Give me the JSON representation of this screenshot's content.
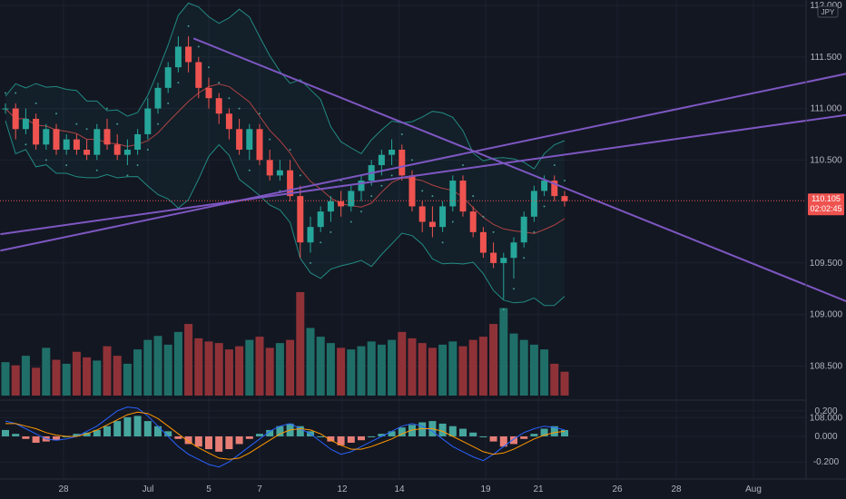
{
  "chart_data": {
    "type": "candlestick",
    "instrument_currency": "JPY",
    "last_price": "110.105",
    "countdown": "02:02:45",
    "price_axis": {
      "range": [
        107.65,
        112.0
      ],
      "ticks": [
        "112.000",
        "111.500",
        "111.000",
        "110.500",
        "109.500",
        "109.000",
        "108.500",
        "108.000"
      ]
    },
    "x_axis": {
      "date_labels": [
        "28",
        "Jul",
        "5",
        "7",
        "12",
        "14",
        "19",
        "21",
        "26",
        "28",
        "Aug"
      ]
    },
    "oscillator_axis": {
      "range": [
        -0.32,
        0.27
      ],
      "ticks": [
        "0.200",
        "0.000",
        "-0.200"
      ]
    },
    "candles": [
      [
        111.0,
        111.05,
        110.95,
        111.0
      ],
      [
        111.0,
        111.05,
        110.7,
        110.8
      ],
      [
        110.8,
        111.0,
        110.75,
        110.9
      ],
      [
        110.9,
        110.95,
        110.6,
        110.65
      ],
      [
        110.65,
        110.85,
        110.6,
        110.8
      ],
      [
        110.8,
        110.85,
        110.55,
        110.6
      ],
      [
        110.6,
        110.75,
        110.55,
        110.7
      ],
      [
        110.7,
        110.75,
        110.55,
        110.6
      ],
      [
        110.6,
        110.7,
        110.5,
        110.55
      ],
      [
        110.55,
        110.85,
        110.5,
        110.8
      ],
      [
        110.8,
        110.9,
        110.6,
        110.65
      ],
      [
        110.65,
        110.75,
        110.5,
        110.55
      ],
      [
        110.55,
        110.7,
        110.45,
        110.6
      ],
      [
        110.6,
        110.8,
        110.55,
        110.75
      ],
      [
        110.75,
        111.1,
        110.7,
        111.0
      ],
      [
        111.0,
        111.25,
        110.95,
        111.2
      ],
      [
        111.2,
        111.45,
        111.15,
        111.4
      ],
      [
        111.4,
        111.7,
        111.35,
        111.6
      ],
      [
        111.6,
        111.7,
        111.35,
        111.45
      ],
      [
        111.45,
        111.5,
        111.1,
        111.2
      ],
      [
        111.2,
        111.3,
        111.0,
        111.1
      ],
      [
        111.1,
        111.15,
        110.85,
        110.95
      ],
      [
        110.95,
        111.0,
        110.7,
        110.8
      ],
      [
        110.8,
        110.9,
        110.55,
        110.6
      ],
      [
        110.6,
        110.85,
        110.5,
        110.8
      ],
      [
        110.8,
        110.85,
        110.45,
        110.5
      ],
      [
        110.5,
        110.6,
        110.3,
        110.35
      ],
      [
        110.35,
        110.5,
        110.3,
        110.4
      ],
      [
        110.4,
        110.5,
        110.1,
        110.15
      ],
      [
        110.15,
        110.25,
        109.55,
        109.7
      ],
      [
        109.7,
        109.95,
        109.6,
        109.85
      ],
      [
        109.85,
        110.05,
        109.8,
        110.0
      ],
      [
        110.0,
        110.15,
        109.9,
        110.1
      ],
      [
        110.1,
        110.2,
        109.95,
        110.05
      ],
      [
        110.05,
        110.25,
        110.0,
        110.2
      ],
      [
        110.2,
        110.35,
        110.1,
        110.3
      ],
      [
        110.3,
        110.5,
        110.25,
        110.45
      ],
      [
        110.45,
        110.6,
        110.35,
        110.55
      ],
      [
        110.55,
        110.7,
        110.45,
        110.6
      ],
      [
        110.6,
        110.65,
        110.3,
        110.35
      ],
      [
        110.35,
        110.4,
        110.0,
        110.05
      ],
      [
        110.05,
        110.1,
        109.8,
        109.9
      ],
      [
        109.9,
        110.05,
        109.75,
        109.85
      ],
      [
        109.85,
        110.1,
        109.8,
        110.05
      ],
      [
        110.05,
        110.35,
        110.0,
        110.3
      ],
      [
        110.3,
        110.35,
        109.95,
        110.0
      ],
      [
        110.0,
        110.05,
        109.75,
        109.8
      ],
      [
        109.8,
        109.85,
        109.55,
        109.6
      ],
      [
        109.6,
        109.7,
        109.45,
        109.5
      ],
      [
        109.5,
        109.6,
        109.15,
        109.55
      ],
      [
        109.55,
        109.75,
        109.35,
        109.7
      ],
      [
        109.7,
        110.0,
        109.65,
        109.95
      ],
      [
        109.95,
        110.25,
        109.9,
        110.2
      ],
      [
        110.2,
        110.35,
        110.15,
        110.3
      ],
      [
        110.3,
        110.35,
        110.1,
        110.15
      ],
      [
        110.15,
        110.2,
        110.05,
        110.1
      ]
    ],
    "volumes": [
      42,
      38,
      50,
      35,
      60,
      45,
      40,
      55,
      48,
      44,
      62,
      50,
      40,
      58,
      70,
      75,
      64,
      80,
      90,
      72,
      68,
      66,
      58,
      62,
      70,
      74,
      60,
      66,
      70,
      130,
      85,
      74,
      66,
      60,
      58,
      62,
      68,
      64,
      70,
      80,
      72,
      66,
      60,
      64,
      68,
      62,
      70,
      74,
      90,
      110,
      78,
      70,
      64,
      58,
      40,
      30
    ],
    "oscillator": {
      "histogram": [
        0.05,
        0.02,
        -0.02,
        -0.05,
        -0.04,
        -0.03,
        0.0,
        0.02,
        0.03,
        0.05,
        0.08,
        0.12,
        0.15,
        0.16,
        0.12,
        0.08,
        0.04,
        -0.02,
        -0.06,
        -0.08,
        -0.1,
        -0.12,
        -0.1,
        -0.06,
        -0.02,
        0.02,
        0.05,
        0.08,
        0.1,
        0.08,
        0.04,
        0.0,
        -0.04,
        -0.07,
        -0.05,
        -0.03,
        0.0,
        0.02,
        0.04,
        0.07,
        0.09,
        0.11,
        0.12,
        0.1,
        0.08,
        0.06,
        0.03,
        0.0,
        -0.04,
        -0.08,
        -0.06,
        -0.02,
        0.02,
        0.06,
        0.08,
        0.05
      ],
      "line_fast": [
        0.12,
        0.1,
        0.06,
        0.02,
        -0.02,
        -0.03,
        -0.02,
        0.0,
        0.04,
        0.08,
        0.14,
        0.2,
        0.23,
        0.22,
        0.16,
        0.08,
        0.0,
        -0.08,
        -0.14,
        -0.18,
        -0.22,
        -0.24,
        -0.2,
        -0.14,
        -0.08,
        -0.02,
        0.04,
        0.08,
        0.1,
        0.06,
        0.02,
        -0.04,
        -0.1,
        -0.14,
        -0.12,
        -0.08,
        -0.04,
        0.0,
        0.04,
        0.08,
        0.1,
        0.08,
        0.04,
        -0.02,
        -0.08,
        -0.12,
        -0.16,
        -0.19,
        -0.14,
        -0.08,
        -0.02,
        0.03,
        0.06,
        0.08,
        0.07,
        0.05
      ],
      "line_slow": [
        0.1,
        0.1,
        0.08,
        0.06,
        0.03,
        0.01,
        0.0,
        0.0,
        0.02,
        0.05,
        0.09,
        0.13,
        0.17,
        0.19,
        0.18,
        0.14,
        0.08,
        0.02,
        -0.04,
        -0.09,
        -0.13,
        -0.17,
        -0.18,
        -0.17,
        -0.13,
        -0.08,
        -0.03,
        0.02,
        0.05,
        0.06,
        0.05,
        0.02,
        -0.03,
        -0.07,
        -0.1,
        -0.1,
        -0.08,
        -0.05,
        -0.02,
        0.02,
        0.05,
        0.06,
        0.06,
        0.04,
        0.0,
        -0.04,
        -0.08,
        -0.12,
        -0.14,
        -0.13,
        -0.1,
        -0.06,
        -0.02,
        0.01,
        0.03,
        0.04
      ]
    },
    "trend_lines": [
      {
        "from": [
          -0.5,
          109.62
        ],
        "to": [
          93,
          111.55
        ]
      },
      {
        "from": [
          -0.5,
          109.78
        ],
        "to": [
          93,
          111.08
        ]
      },
      {
        "from": [
          18.5,
          111.68
        ],
        "to": [
          93,
          108.72
        ]
      }
    ],
    "colors": {
      "up": "#26a69a",
      "down": "#ef5350",
      "volume_up": "#1f6f68",
      "volume_down": "#8f3238",
      "trend_line": "#7e57c2",
      "band": "#26a69a",
      "ma": "#ef5350",
      "osc_fast": "#2962ff",
      "osc_slow": "#ff9800",
      "background": "#131722",
      "grid": "#1e2230",
      "price_tag": "#ef5350"
    }
  }
}
